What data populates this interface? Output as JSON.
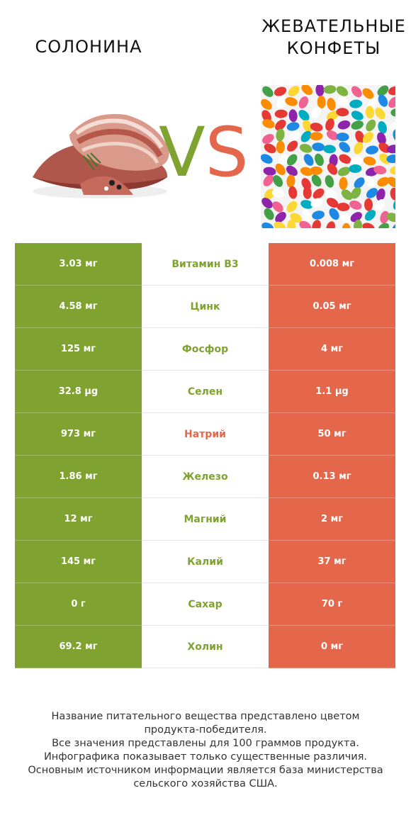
{
  "header": {
    "left_title": "СОЛОНИНА",
    "right_title_line1": "ЖЕВАТЕЛЬНЫЕ",
    "right_title_line2": "КОНФЕТЫ",
    "vs_v": "V",
    "vs_s": "S"
  },
  "colors": {
    "green": "#7fa231",
    "red": "#e4674c"
  },
  "rows": [
    {
      "left": "3.03 мг",
      "name": "Витамин B3",
      "right": "0.008 мг",
      "winner": "left"
    },
    {
      "left": "4.58 мг",
      "name": "Цинк",
      "right": "0.05 мг",
      "winner": "left"
    },
    {
      "left": "125 мг",
      "name": "Фосфор",
      "right": "4 мг",
      "winner": "left"
    },
    {
      "left": "32.8 µg",
      "name": "Селен",
      "right": "1.1 µg",
      "winner": "left"
    },
    {
      "left": "973 мг",
      "name": "Натрий",
      "right": "50 мг",
      "winner": "right"
    },
    {
      "left": "1.86 мг",
      "name": "Железо",
      "right": "0.13 мг",
      "winner": "left"
    },
    {
      "left": "12 мг",
      "name": "Магний",
      "right": "2 мг",
      "winner": "left"
    },
    {
      "left": "145 мг",
      "name": "Калий",
      "right": "37 мг",
      "winner": "left"
    },
    {
      "left": "0 г",
      "name": "Сахар",
      "right": "70 г",
      "winner": "left"
    },
    {
      "left": "69.2 мг",
      "name": "Холин",
      "right": "0 мг",
      "winner": "left"
    }
  ],
  "footnote": {
    "line1": "Название питательного вещества представлено цветом",
    "line2": "продукта-победителя.",
    "line3": "Все значения представлены для 100 граммов продукта.",
    "line4": "Инфографика показывает только существенные различия.",
    "line5": "Основным источником информации является база министерства",
    "line6": "сельского хозяйства США."
  }
}
